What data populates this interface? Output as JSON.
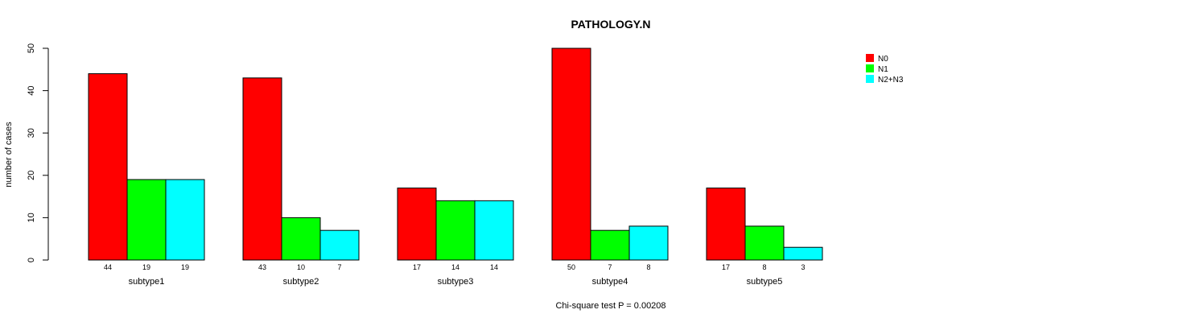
{
  "chart_data": {
    "type": "bar",
    "title": "PATHOLOGY.N",
    "xlabel": "Chi-square test P = 0.00208",
    "ylabel": "number of cases",
    "categories": [
      "subtype1",
      "subtype2",
      "subtype3",
      "subtype4",
      "subtype5"
    ],
    "series": [
      {
        "name": "N0",
        "color": "#ff0000",
        "values": [
          44,
          43,
          17,
          50,
          17
        ]
      },
      {
        "name": "N1",
        "color": "#00ff00",
        "values": [
          19,
          10,
          14,
          7,
          8
        ]
      },
      {
        "name": "N2+N3",
        "color": "#00ffff",
        "values": [
          19,
          7,
          14,
          8,
          3
        ]
      }
    ],
    "ylim": [
      0,
      50
    ],
    "yticks": [
      0,
      10,
      20,
      30,
      40,
      50
    ],
    "grid": false,
    "legend_position": "top-right"
  }
}
